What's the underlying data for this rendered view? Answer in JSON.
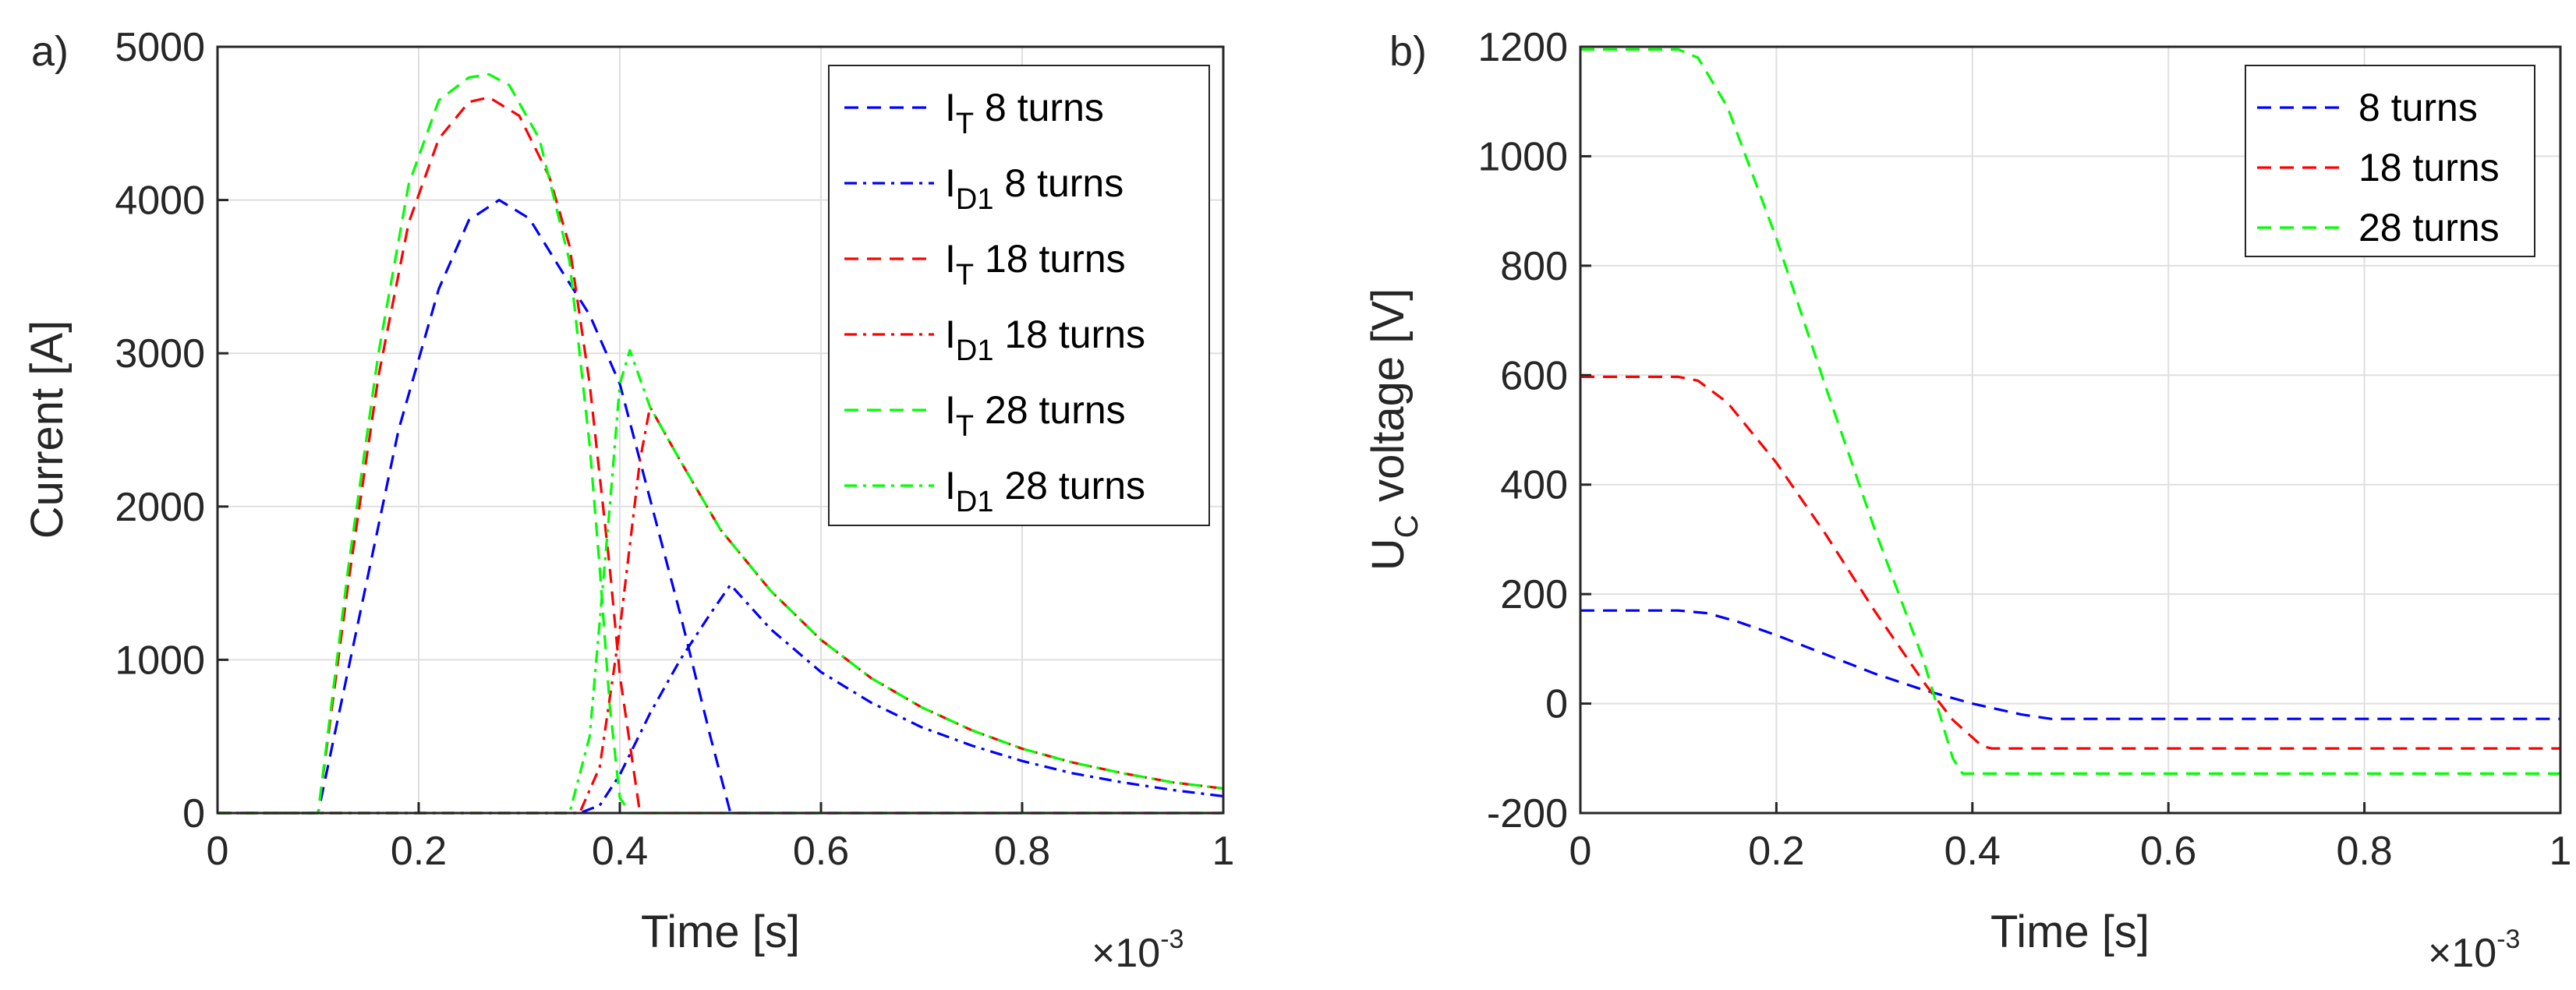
{
  "figure": {
    "colors": {
      "blue": "#0000ff",
      "red": "#ff0000",
      "green": "#00ff00",
      "axis": "#262626",
      "grid": "#dfdfdf"
    }
  },
  "chart_data": [
    {
      "type": "line",
      "panel_label": "a)",
      "xlabel": "Time [s]",
      "ylabel": "Current [A]",
      "x_exponent_base": "×10",
      "x_exponent_power": "-3",
      "xlim": [
        0,
        1
      ],
      "ylim": [
        0,
        5000
      ],
      "xticks": [
        0,
        0.2,
        0.4,
        0.6,
        0.8,
        1
      ],
      "xtick_labels": [
        "0",
        "0.2",
        "0.4",
        "0.6",
        "0.8",
        "1"
      ],
      "yticks": [
        0,
        1000,
        2000,
        3000,
        4000,
        5000
      ],
      "ytick_labels": [
        "0",
        "1000",
        "2000",
        "3000",
        "4000",
        "5000"
      ],
      "grid": true,
      "legend_position": "top-right",
      "series": [
        {
          "name": "I_T 8 turns",
          "legend_main": "I",
          "legend_sub": "T",
          "legend_rest": " 8 turns",
          "color": "#0000ff",
          "dash": "dashed",
          "x": [
            0,
            0.1,
            0.14,
            0.18,
            0.22,
            0.25,
            0.28,
            0.31,
            0.34,
            0.37,
            0.4,
            0.43,
            0.46,
            0.49,
            0.51,
            0.52,
            1.0
          ],
          "y": [
            0,
            0,
            1250,
            2500,
            3420,
            3870,
            4000,
            3880,
            3560,
            3250,
            2800,
            2050,
            1300,
            500,
            0,
            0,
            0
          ]
        },
        {
          "name": "I_D1 8 turns",
          "legend_main": "I",
          "legend_sub": "D1",
          "legend_rest": " 8 turns",
          "color": "#0000ff",
          "dash": "dashdot",
          "x": [
            0,
            0.36,
            0.38,
            0.4,
            0.43,
            0.46,
            0.49,
            0.51,
            0.55,
            0.6,
            0.65,
            0.7,
            0.75,
            0.8,
            0.85,
            0.9,
            0.95,
            1.0
          ],
          "y": [
            0,
            0,
            50,
            250,
            650,
            1000,
            1300,
            1490,
            1200,
            920,
            720,
            560,
            440,
            340,
            260,
            200,
            150,
            110
          ]
        },
        {
          "name": "I_T 18 turns",
          "legend_main": "I",
          "legend_sub": "T",
          "legend_rest": " 18 turns",
          "color": "#ff0000",
          "dash": "dashed",
          "x": [
            0,
            0.1,
            0.13,
            0.16,
            0.19,
            0.22,
            0.25,
            0.27,
            0.3,
            0.33,
            0.35,
            0.37,
            0.39,
            0.4,
            0.42,
            0.43,
            1.0
          ],
          "y": [
            0,
            0,
            1500,
            2850,
            3850,
            4400,
            4640,
            4670,
            4550,
            4150,
            3700,
            2800,
            1600,
            900,
            0,
            0,
            0
          ]
        },
        {
          "name": "I_D1 18 turns",
          "legend_main": "I",
          "legend_sub": "D1",
          "legend_rest": " 18 turns",
          "color": "#ff0000",
          "dash": "dashdot",
          "x": [
            0,
            0.36,
            0.38,
            0.4,
            0.42,
            0.43,
            0.46,
            0.5,
            0.55,
            0.6,
            0.65,
            0.7,
            0.75,
            0.8,
            0.85,
            0.9,
            0.95,
            1.0
          ],
          "y": [
            0,
            0,
            300,
            1200,
            2300,
            2650,
            2300,
            1850,
            1450,
            1130,
            880,
            690,
            540,
            420,
            330,
            260,
            200,
            160
          ]
        },
        {
          "name": "I_T 28 turns",
          "legend_main": "I",
          "legend_sub": "T",
          "legend_rest": " 28 turns",
          "color": "#00ff00",
          "dash": "dashed",
          "x": [
            0,
            0.1,
            0.13,
            0.16,
            0.19,
            0.22,
            0.25,
            0.27,
            0.29,
            0.32,
            0.35,
            0.37,
            0.38,
            0.39,
            0.4,
            0.41,
            1.0
          ],
          "y": [
            0,
            0,
            1600,
            3000,
            4100,
            4650,
            4800,
            4820,
            4750,
            4400,
            3600,
            2400,
            1600,
            700,
            100,
            0,
            0
          ]
        },
        {
          "name": "I_D1 28 turns",
          "legend_main": "I",
          "legend_sub": "D1",
          "legend_rest": " 28 turns",
          "color": "#00ff00",
          "dash": "dashdot",
          "x": [
            0,
            0.35,
            0.37,
            0.39,
            0.4,
            0.41,
            0.43,
            0.46,
            0.5,
            0.55,
            0.6,
            0.65,
            0.7,
            0.75,
            0.8,
            0.85,
            0.9,
            0.95,
            1.0
          ],
          "y": [
            0,
            0,
            500,
            2000,
            2800,
            3020,
            2650,
            2300,
            1850,
            1450,
            1130,
            880,
            690,
            540,
            420,
            330,
            260,
            200,
            160
          ]
        }
      ]
    },
    {
      "type": "line",
      "panel_label": "b)",
      "xlabel": "Time [s]",
      "ylabel_main": "U",
      "ylabel_sub": "C",
      "ylabel_rest": " voltage [V]",
      "x_exponent_base": "×10",
      "x_exponent_power": "-3",
      "xlim": [
        0,
        1
      ],
      "ylim": [
        -200,
        1200
      ],
      "xticks": [
        0,
        0.2,
        0.4,
        0.6,
        0.8,
        1
      ],
      "xtick_labels": [
        "0",
        "0.2",
        "0.4",
        "0.6",
        "0.8",
        "1"
      ],
      "yticks": [
        -200,
        0,
        200,
        400,
        600,
        800,
        1000,
        1200
      ],
      "ytick_labels": [
        "-200",
        "0",
        "200",
        "400",
        "600",
        "800",
        "1000",
        "1200"
      ],
      "grid": true,
      "legend_position": "top-right",
      "series": [
        {
          "name": "8 turns",
          "color": "#0000ff",
          "dash": "dashed",
          "x": [
            0,
            0.1,
            0.13,
            0.16,
            0.2,
            0.25,
            0.3,
            0.35,
            0.4,
            0.45,
            0.48,
            0.5,
            1.0
          ],
          "y": [
            170,
            170,
            165,
            150,
            125,
            90,
            55,
            25,
            0,
            -20,
            -28,
            -28,
            -28
          ]
        },
        {
          "name": "18 turns",
          "color": "#ff0000",
          "dash": "dashed",
          "x": [
            0,
            0.1,
            0.12,
            0.15,
            0.2,
            0.25,
            0.3,
            0.35,
            0.38,
            0.41,
            0.42,
            1.0
          ],
          "y": [
            597,
            597,
            590,
            550,
            440,
            310,
            170,
            40,
            -30,
            -78,
            -82,
            -82
          ]
        },
        {
          "name": "28 turns",
          "color": "#00ff00",
          "dash": "dashed",
          "x": [
            0,
            0.1,
            0.12,
            0.15,
            0.2,
            0.25,
            0.3,
            0.35,
            0.38,
            0.39,
            1.0
          ],
          "y": [
            1195,
            1195,
            1180,
            1090,
            850,
            580,
            320,
            80,
            -100,
            -128,
            -128
          ]
        }
      ]
    }
  ]
}
